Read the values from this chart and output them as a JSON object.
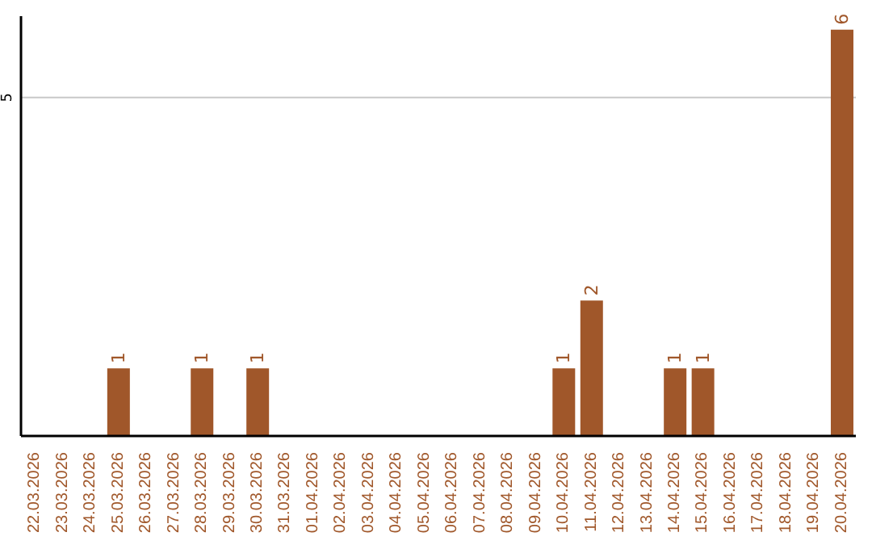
{
  "chart_data": {
    "type": "bar",
    "categories": [
      "22.03.2026",
      "23.03.2026",
      "24.03.2026",
      "25.03.2026",
      "26.03.2026",
      "27.03.2026",
      "28.03.2026",
      "29.03.2026",
      "30.03.2026",
      "31.03.2026",
      "01.04.2026",
      "02.04.2026",
      "03.04.2026",
      "04.04.2026",
      "05.04.2026",
      "06.04.2026",
      "07.04.2026",
      "08.04.2026",
      "09.04.2026",
      "10.04.2026",
      "11.04.2026",
      "12.04.2026",
      "13.04.2026",
      "14.04.2026",
      "15.04.2026",
      "16.04.2026",
      "17.04.2026",
      "18.04.2026",
      "19.04.2026",
      "20.04.2026"
    ],
    "values": [
      0,
      0,
      0,
      1,
      0,
      0,
      1,
      0,
      1,
      0,
      0,
      0,
      0,
      0,
      0,
      0,
      0,
      0,
      0,
      1,
      2,
      0,
      0,
      1,
      1,
      0,
      0,
      0,
      0,
      6
    ],
    "value_labels": [
      null,
      null,
      null,
      "1",
      null,
      null,
      "1",
      null,
      "1",
      null,
      null,
      null,
      null,
      null,
      null,
      null,
      null,
      null,
      null,
      "1",
      "2",
      null,
      null,
      "1",
      "1",
      null,
      null,
      null,
      null,
      "6"
    ],
    "color": "#a0572a",
    "ylim": [
      0,
      6.2
    ],
    "yticks": [
      5
    ],
    "grid": "y"
  }
}
